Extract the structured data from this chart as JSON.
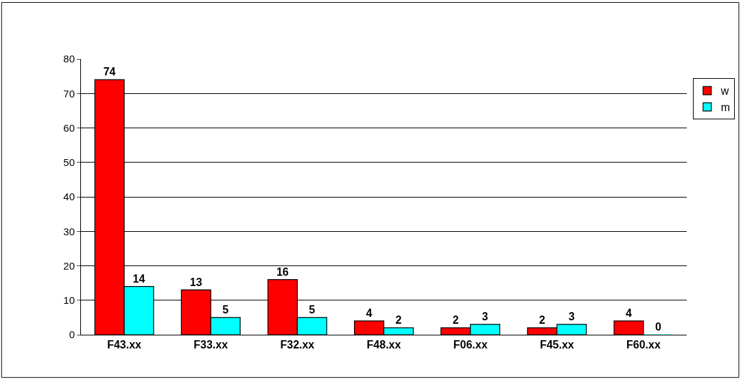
{
  "chart_data": {
    "type": "bar",
    "categories": [
      "F43.xx",
      "F33.xx",
      "F32.xx",
      "F48.xx",
      "F06.xx",
      "F45.xx",
      "F60.xx"
    ],
    "series": [
      {
        "name": "w",
        "color": "#ff0000",
        "values": [
          74,
          13,
          16,
          4,
          2,
          2,
          4
        ]
      },
      {
        "name": "m",
        "color": "#00ffff",
        "values": [
          14,
          5,
          5,
          2,
          3,
          3,
          0
        ]
      }
    ],
    "ylim": [
      0,
      80
    ],
    "yticks": [
      0,
      10,
      20,
      30,
      40,
      50,
      60,
      70,
      80
    ],
    "grid": "y",
    "legend": "right",
    "data_labels": true
  }
}
